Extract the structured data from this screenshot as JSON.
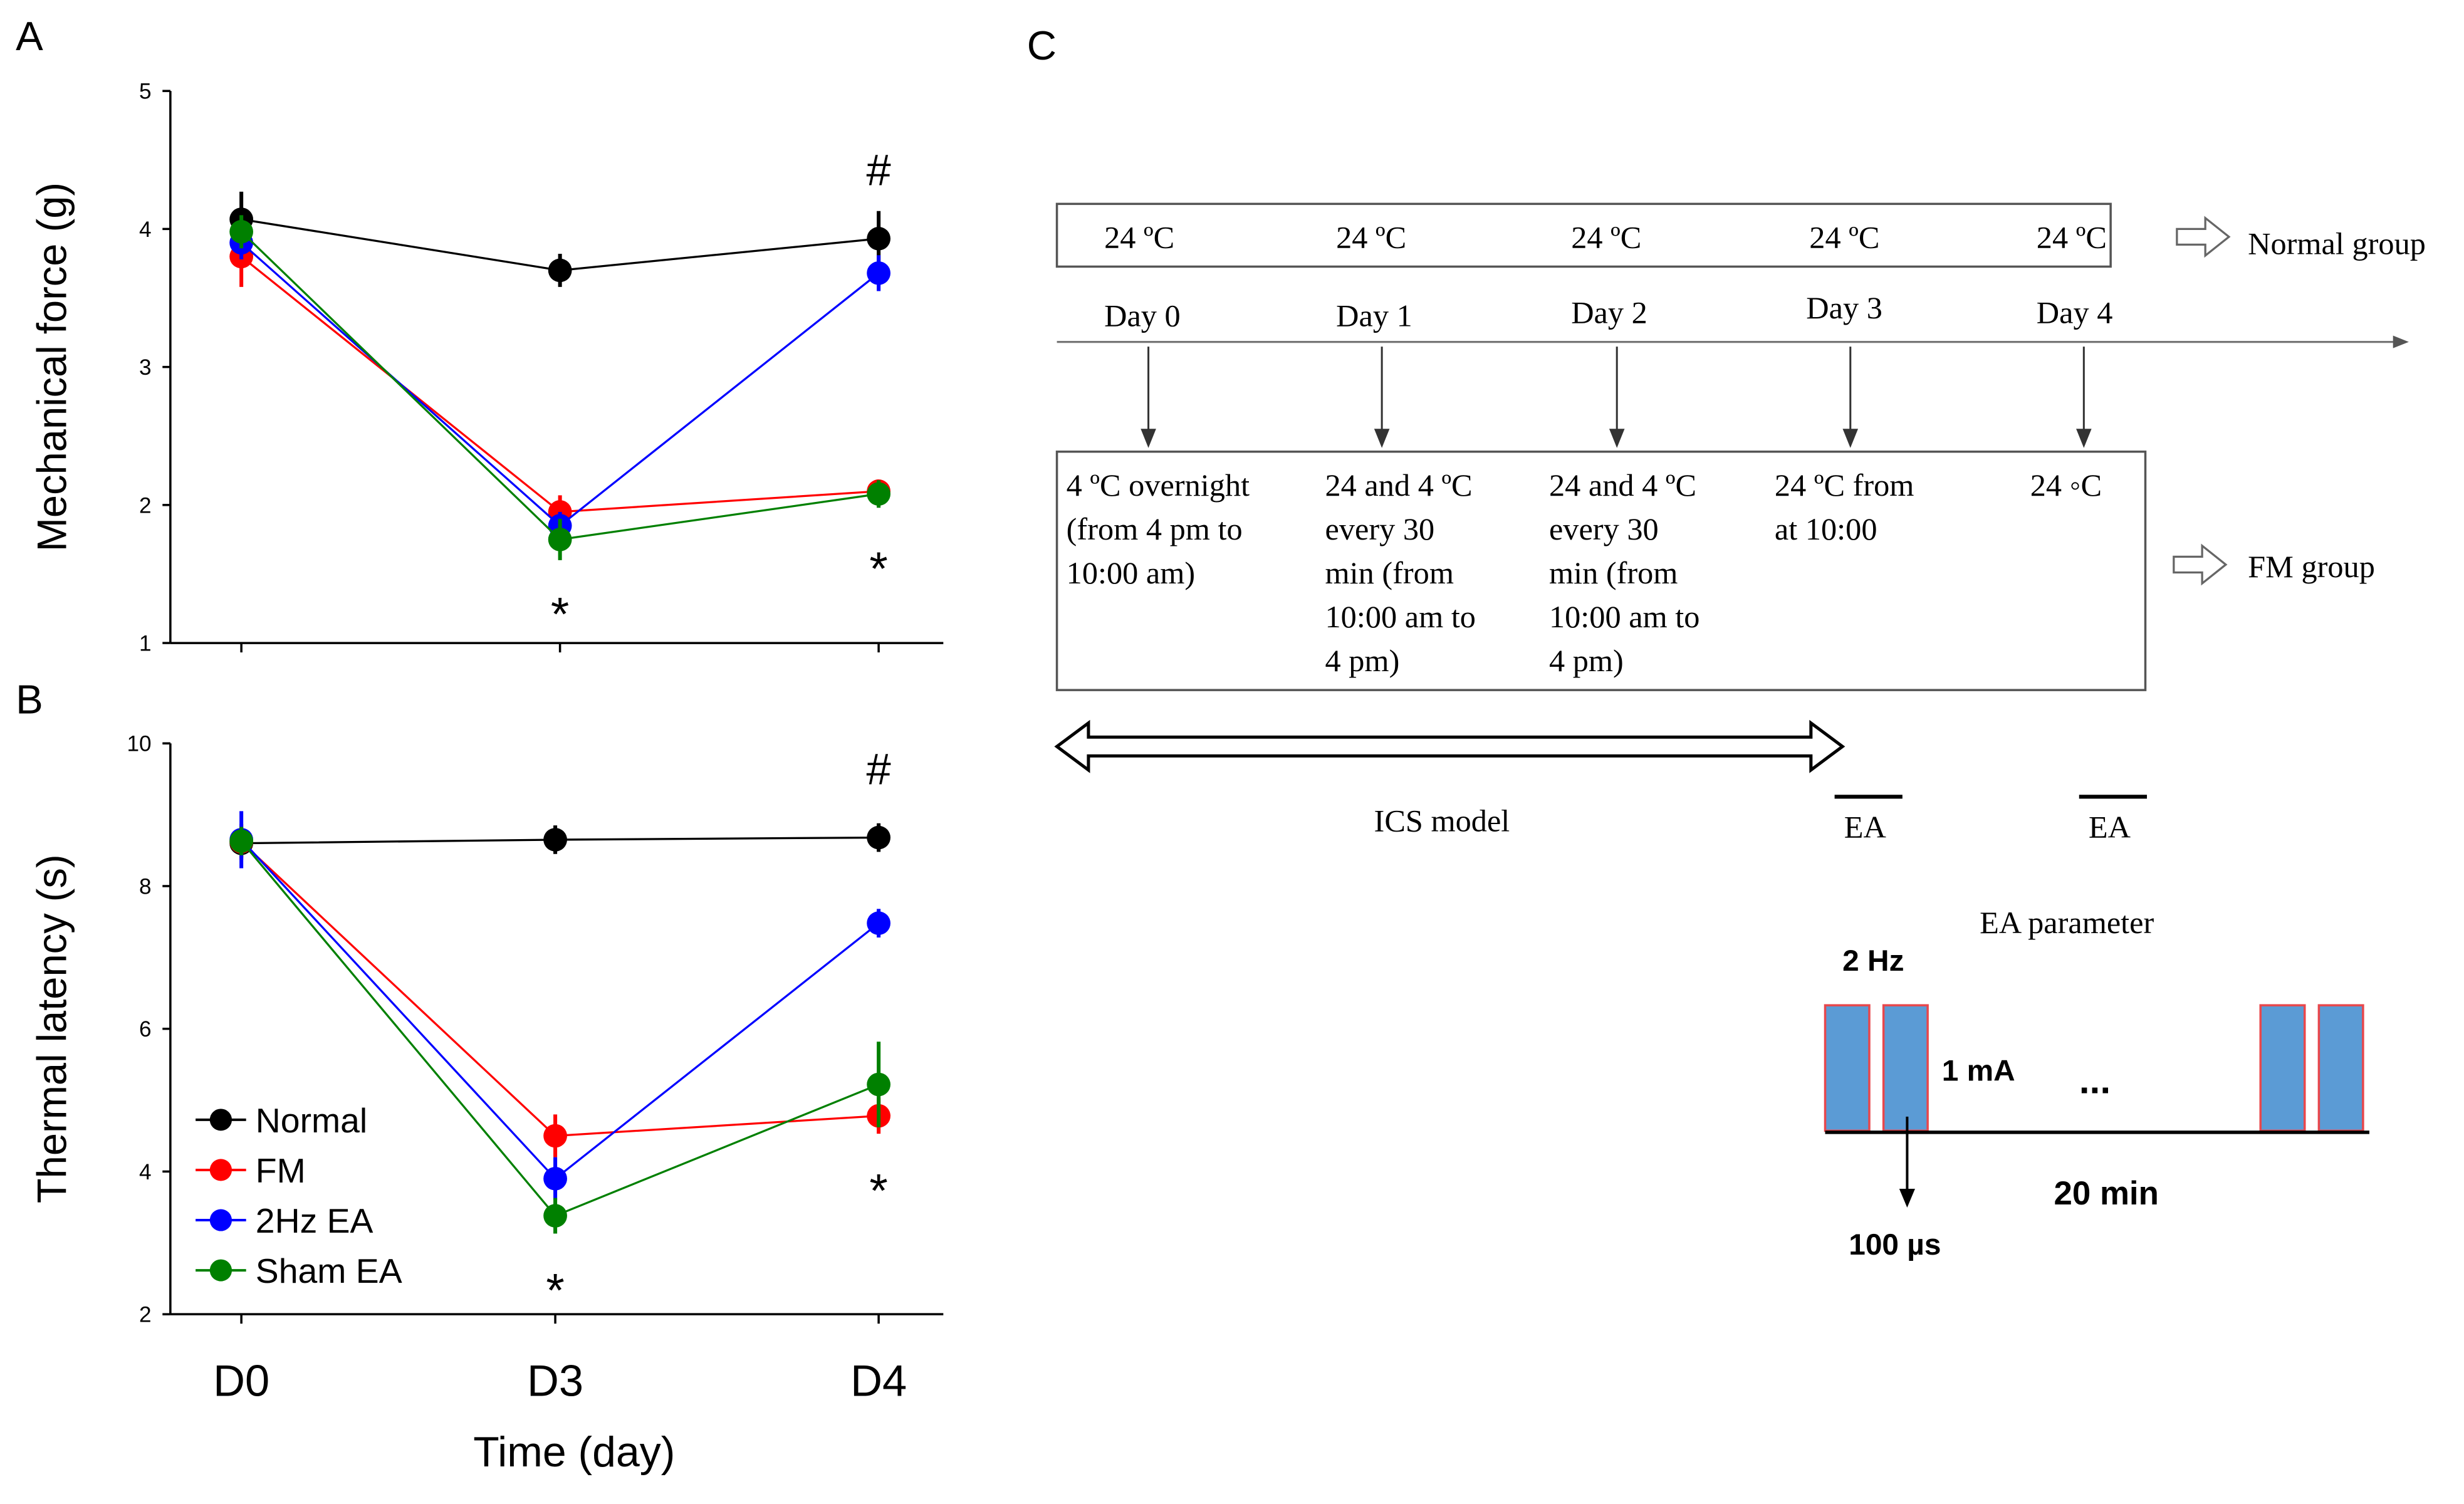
{
  "panel_labels": {
    "a": "A",
    "b": "B",
    "c": "C"
  },
  "colors": {
    "Normal": "#000000",
    "FM": "#ff0000",
    "2Hz EA": "#0000ff",
    "Sham EA": "#008000",
    "pulse_fill": "#5b9bd5",
    "pulse_edge": "#e8474c"
  },
  "chart_data": [
    {
      "id": "A",
      "type": "line",
      "ylabel": "Mechanical force (g)",
      "xlabel": "",
      "categories": [
        "D0",
        "D3",
        "D4"
      ],
      "ylim": [
        1,
        5
      ],
      "yticks": [
        1,
        2,
        3,
        4,
        5
      ],
      "grid": false,
      "series": [
        {
          "name": "Normal",
          "values": [
            4.07,
            3.7,
            3.93
          ],
          "errors": [
            0.2,
            0.12,
            0.2
          ]
        },
        {
          "name": "FM",
          "values": [
            3.8,
            1.95,
            2.1
          ],
          "errors": [
            0.22,
            0.12,
            0.08
          ]
        },
        {
          "name": "2Hz EA",
          "values": [
            3.9,
            1.85,
            3.68
          ],
          "errors": [
            0.12,
            0.1,
            0.13
          ]
        },
        {
          "name": "Sham EA",
          "values": [
            3.98,
            1.75,
            2.08
          ],
          "errors": [
            0.12,
            0.15,
            0.1
          ]
        }
      ],
      "annotations": [
        {
          "text": "*",
          "x": "D3",
          "position": "below"
        },
        {
          "text": "#",
          "x": "D4",
          "position": "above"
        },
        {
          "text": "*",
          "x": "D4",
          "position": "below"
        }
      ]
    },
    {
      "id": "B",
      "type": "line",
      "ylabel": "Thermal latency (s)",
      "xlabel": "Time (day)",
      "categories": [
        "D0",
        "D3",
        "D4"
      ],
      "ylim": [
        2,
        10
      ],
      "yticks": [
        2,
        4,
        6,
        8,
        10
      ],
      "grid": false,
      "legend": "bottom-left",
      "series": [
        {
          "name": "Normal",
          "values": [
            8.6,
            8.65,
            8.68
          ],
          "errors": [
            0.2,
            0.2,
            0.2
          ]
        },
        {
          "name": "FM",
          "values": [
            8.62,
            4.5,
            4.78
          ],
          "errors": [
            0.25,
            0.3,
            0.25
          ]
        },
        {
          "name": "2Hz EA",
          "values": [
            8.65,
            3.9,
            7.48
          ],
          "errors": [
            0.4,
            0.3,
            0.2
          ]
        },
        {
          "name": "Sham EA",
          "values": [
            8.63,
            3.38,
            5.22
          ],
          "errors": [
            0.2,
            0.25,
            0.6
          ]
        }
      ],
      "annotations": [
        {
          "text": "*",
          "x": "D3",
          "position": "below"
        },
        {
          "text": "#",
          "x": "D4",
          "position": "above"
        },
        {
          "text": "*",
          "x": "D4",
          "position": "below"
        }
      ]
    }
  ],
  "diagram": {
    "normal_temps": [
      "24 ºC",
      "24 ºC",
      "24 ºC",
      "24 ºC",
      "24 ºC"
    ],
    "normal_group_label": "Normal group",
    "days": [
      "Day 0",
      "Day 1",
      "Day 2",
      "Day 3",
      "Day 4"
    ],
    "fm_conditions": [
      [
        "4 ºC overnight",
        "(from 4 pm to",
        "10:00 am)"
      ],
      [
        "24 and 4 ºC",
        "every 30",
        "min (from",
        "10:00 am to",
        "4 pm)"
      ],
      [
        "24 and 4 ºC",
        "every 30",
        "min (from",
        "10:00 am to",
        "4 pm)"
      ],
      [
        "24 ºC from",
        "at 10:00"
      ],
      [
        "24 ◦C"
      ]
    ],
    "fm_group_label": "FM group",
    "ics_label": "ICS model",
    "ea_labels": [
      "EA",
      "EA"
    ],
    "ea_parameter": {
      "title": "EA parameter",
      "frequency": "2 Hz",
      "current": "1 mA",
      "ellipsis": "...",
      "pulse_width": "100 µs",
      "duration": "20 min"
    }
  }
}
